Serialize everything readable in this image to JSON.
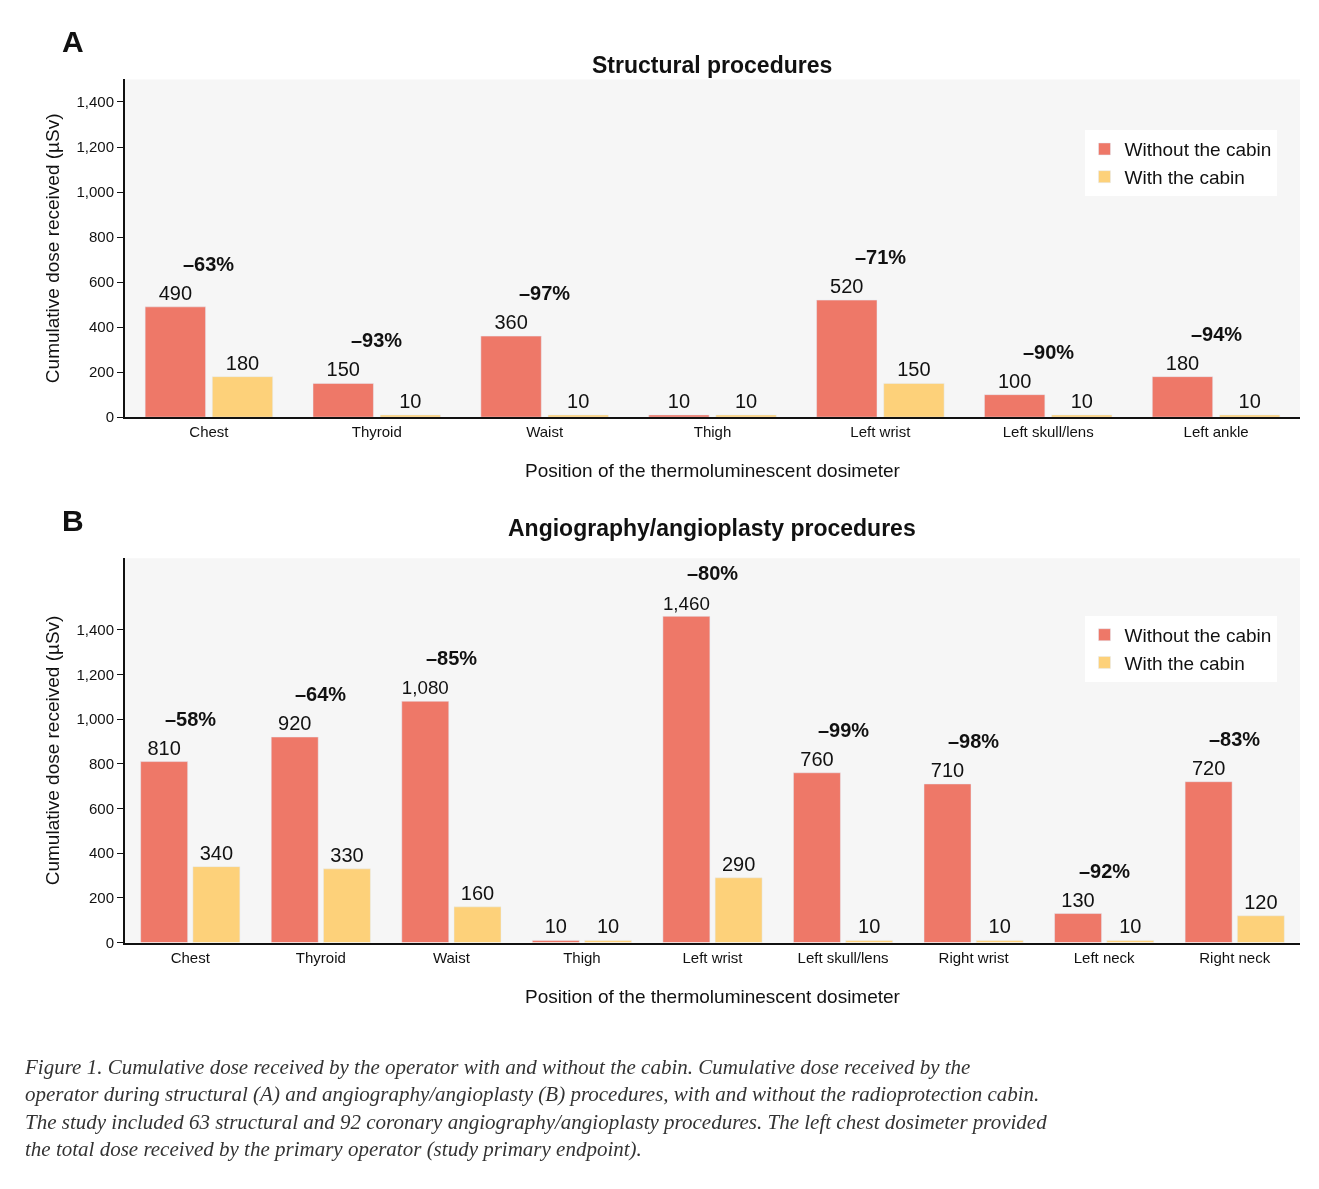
{
  "chart_data": [
    {
      "type": "bar",
      "title": "Structural procedures",
      "xlabel": "Position of the thermoluminescent dosimeter",
      "ylabel": "Cumulative dose received (µSv)",
      "categories": [
        "Chest",
        "Thyroid",
        "Waist",
        "Thigh",
        "Left wrist",
        "Left skull/lens",
        "Left ankle"
      ],
      "series": [
        {
          "name": "Without the cabin",
          "color": "#ee7868",
          "values": [
            490,
            150,
            360,
            10,
            520,
            100,
            180
          ],
          "value_labels": [
            "490",
            "150",
            "360",
            "10",
            "520",
            "100",
            "180"
          ]
        },
        {
          "name": "With the cabin",
          "color": "#fdd17a",
          "values": [
            180,
            10,
            10,
            10,
            150,
            10,
            10
          ],
          "value_labels": [
            "180",
            "10",
            "10",
            "10",
            "150",
            "10",
            "10"
          ]
        }
      ],
      "ylim": [
        0,
        1500
      ],
      "yticks": [
        0,
        200,
        400,
        600,
        800,
        {
          "value": 1000,
          "label": "1,000"
        },
        {
          "value": 1200,
          "label": "1,200"
        },
        {
          "value": 1400,
          "label": "1,400"
        }
      ],
      "legend": "top right",
      "grid": false,
      "annotations": [
        "A",
        "–63%",
        "–93%",
        "–97%",
        "–71%",
        "–90%",
        "–94%"
      ]
    },
    {
      "type": "bar",
      "title": "Angiography/angioplasty procedures",
      "xlabel": "Position of the thermoluminescent dosimeter",
      "ylabel": "Cumulative dose received (µSv)",
      "categories": [
        "Chest",
        "Thyroid",
        "Waist",
        "Thigh",
        "Left wrist",
        "Left skull/lens",
        "Right wrist",
        "Left neck",
        "Right neck"
      ],
      "series": [
        {
          "name": "Without the cabin",
          "color": "#ee7868",
          "values": [
            810,
            920,
            1080,
            10,
            1460,
            760,
            710,
            130,
            720
          ],
          "value_labels": [
            "810",
            "920",
            "1,080",
            "10",
            "1,460",
            "760",
            "710",
            "130",
            "720"
          ]
        },
        {
          "name": "With the cabin",
          "color": "#fdd17a",
          "values": [
            340,
            330,
            160,
            10,
            290,
            10,
            10,
            10,
            120
          ],
          "value_labels": [
            "340",
            "330",
            "160",
            "10",
            "290",
            "10",
            "10",
            "10",
            "120"
          ]
        }
      ],
      "ylim": [
        0,
        1720
      ],
      "yticks": [
        0,
        200,
        400,
        600,
        800,
        {
          "value": 1000,
          "label": "1,000"
        },
        {
          "value": 1200,
          "label": "1,200"
        },
        {
          "value": 1400,
          "label": "1,400"
        }
      ],
      "legend": "top right",
      "grid": false,
      "annotations": [
        "B",
        "–58%",
        "–64%",
        "–85%",
        "–80%",
        "–99%",
        "–98%",
        "–92%",
        "–83%",
        "Figure 1. Cumulative dose received by the operator with and without the cabin. Cumulative dose received by the operator during structural (A) and angiography/angioplasty (B) procedures, with and without the radioprotection cabin. The study included 63 structural and 92 coronary angiography/angioplasty procedures. The left chest dosimeter provided the total dose received by the primary operator (study primary endpoint)."
      ]
    }
  ]
}
